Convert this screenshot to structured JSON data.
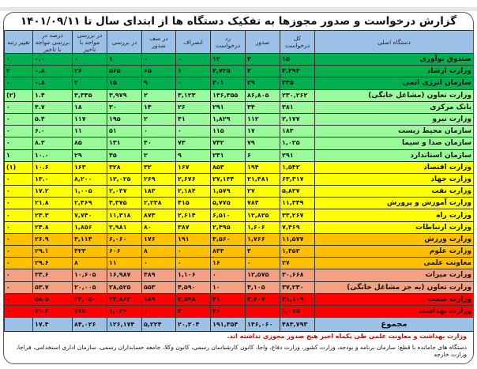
{
  "title": "گزارش درخواست و صدور مجوزها به تفکیک دستگاه ها از ابتدای سال تا ۱۴۰۱/۰۹/۱۱",
  "columns": [
    "دستگاه اصلی",
    "کل درخواست",
    "صدور",
    "رد درخواست",
    "انصراف",
    "در صف صدور",
    "در بررسی",
    "در بررسی مواجه با تاخیر",
    "درصد در بررسی مواجه با تاخیر",
    "تغییر رتبه"
  ],
  "colors": {
    "dark_green": "#00B050",
    "light_green": "#99FB99",
    "yellow": "#FFFF00",
    "orange": "#FFC000",
    "salmon": "#F2A283",
    "red": "#FF0000",
    "header_blue": "#9BC2E6",
    "note_red": "#E00000"
  },
  "rows": [
    {
      "name": "صندوق نوآوری",
      "total": "۱۵",
      "issued": "۲",
      "rejected": "۱۲",
      "cancelled": "۰",
      "queue": "۰",
      "review": "۱",
      "delayed": "۰",
      "pct": "۰.۰",
      "rank": "۰"
    },
    {
      "name": "وزارت ارشاد",
      "total": "۳,۲۹۴",
      "issued": "۳",
      "rejected": "۲,۷۲۵",
      "cancelled": "۱",
      "queue": "۶۵",
      "review": "۵۶۵",
      "delayed": "۲۶",
      "pct": "۰.۸",
      "rank": "۲"
    },
    {
      "name": "سازمان انرژی اتمی",
      "total": "۲۴۵",
      "issued": "۲۹",
      "rejected": "۲۰۱",
      "cancelled": "۰",
      "queue": "۹",
      "review": "۱۵",
      "delayed": "۲",
      "pct": "۰.۸",
      "rank": "۰"
    },
    {
      "name": "وزارت تعاون (مشاغل خانگی)",
      "total": "۲۳۰,۲۶۲",
      "issued": "۸۶,۸۰۵",
      "rejected": "۱۳۶,۳۵۵",
      "cancelled": "۳,۱۲۳",
      "queue": "۲",
      "review": "۳,۹۷۹",
      "delayed": "۳,۳۳۵",
      "pct": "۱.۴",
      "rank": "(۲)"
    },
    {
      "name": "بانک مرکزی",
      "total": "۳۸۱",
      "issued": "۳۴",
      "rejected": "۲۹۱",
      "cancelled": "۲۶",
      "queue": "۱۴",
      "review": "۳۰",
      "delayed": "۱۸",
      "pct": "۴.۷",
      "rank": "۰"
    },
    {
      "name": "وزارت نیرو",
      "total": "۲,۱۷۷",
      "issued": "۱۱۲",
      "rejected": "۱,۸۲۹",
      "cancelled": "۴۱",
      "queue": "۲",
      "review": "۱۹۵",
      "delayed": "۱۱۷",
      "pct": "۵.۴",
      "rank": "۰"
    },
    {
      "name": "سازمان محیط زیست",
      "total": "۱۸۳",
      "issued": "۱۷",
      "rejected": "۱۱۵",
      "cancelled": "۰",
      "queue": "۰",
      "review": "۵۱",
      "delayed": "۱۱",
      "pct": "۶.۰",
      "rank": "۰"
    },
    {
      "name": "سازمان صدا و سیما",
      "total": "۱,۰۲۵",
      "issued": "۷۹",
      "rejected": "۷۴۲",
      "cancelled": "۷۳",
      "queue": "۴۰",
      "review": "۱۳۱",
      "delayed": "۸۵",
      "pct": "۸.۳",
      "rank": "۰"
    },
    {
      "name": "سازمان استاندارد",
      "total": "۲۹۱",
      "issued": "۶",
      "rejected": "۲۳۱",
      "cancelled": "۹",
      "queue": "۲",
      "review": "۴۵",
      "delayed": "۲۹",
      "pct": "۱۰.۰",
      "rank": "۱"
    },
    {
      "name": "وزارت اقتصاد",
      "total": "۱,۵۴۲",
      "issued": "۱۹۴",
      "rejected": "۸۵۳",
      "cancelled": "۱۶۷",
      "queue": "۳۲",
      "review": "۳۲۸",
      "delayed": "۱۶۳",
      "pct": "۱۰.۶",
      "rank": "(۱)"
    },
    {
      "name": "وزارت جهاد",
      "total": "۶۳,۳۱۷",
      "issued": "۲۱,۴۸۱",
      "rejected": "۲۷,۱۳۴",
      "cancelled": "۲,۶۷۶",
      "queue": "۲۶۹",
      "review": "۱۲,۰۲۵",
      "delayed": "۸,۲۰۰",
      "pct": "۱۳.۰",
      "rank": "۰"
    },
    {
      "name": "وزارت نفت",
      "total": "۵,۸۳۷",
      "issued": "۲۷",
      "rejected": "۱,۵۷۹",
      "cancelled": "۲,۱۸۴",
      "queue": "۱۸۳",
      "review": "۲,۰۴۷",
      "delayed": "۱,۰۰۵",
      "pct": "۱۷.۲",
      "rank": "۰"
    },
    {
      "name": "وزارت آموزش و پرورش",
      "total": "۱۱,۳۴۹",
      "issued": "۷۸۴",
      "rejected": "۵,۷۷۵",
      "cancelled": "۴۱۵",
      "queue": "۲,۲۳۸",
      "review": "۴,۳۷۵",
      "delayed": "۲,۴۶۹",
      "pct": "۲۱.۸",
      "rank": "۰"
    },
    {
      "name": "وزارت راه",
      "total": "۳۳,۲۶۷",
      "issued": "۱۲,۸۲۵",
      "rejected": "۶,۵۱۰",
      "cancelled": "۲,۶۱۴",
      "queue": "۸۷۳",
      "review": "۱۱,۳۱۸",
      "delayed": "۷,۷۴۰",
      "pct": "۲۳.۳",
      "rank": "۰"
    },
    {
      "name": "وزارت ارتباطات",
      "total": "۷,۴۶۹",
      "issued": "۱,۶۰۶",
      "rejected": "۲,۴۹۵",
      "cancelled": "۳۸۷",
      "queue": "۸۰",
      "review": "۲,۹۸۱",
      "delayed": "۱,۸۵۶",
      "pct": "۲۴.۸",
      "rank": "۰"
    },
    {
      "name": "وزارت ورزش",
      "total": "۱۱,۵۷۷",
      "issued": "۱,۷۶۶",
      "rejected": "۳,۵۶۰",
      "cancelled": "۱۹۱",
      "queue": "۱۷۶",
      "review": "۶,۰۶۰",
      "delayed": "۳,۱۱۴",
      "pct": "۲۶.۹",
      "rank": "۰"
    },
    {
      "name": "وزارت علوم",
      "total": "۱,۴۵۳",
      "issued": "۳",
      "rejected": "۸۴۴",
      "cancelled": "۰",
      "queue": "۸",
      "review": "۶۰۶",
      "delayed": "۴۲۳",
      "pct": "۲۹.۱",
      "rank": "۰"
    },
    {
      "name": "معاونت علمی",
      "total": "۲۷",
      "issued": "۰",
      "rejected": "۱۶",
      "cancelled": "۰",
      "queue": "۰",
      "review": "۱۱",
      "delayed": "۸",
      "pct": "۲۹.۶",
      "rank": "۰"
    },
    {
      "name": "وزارت میراث",
      "total": "۳۰,۶۶۸",
      "issued": "۱۲,۵۷۵",
      "rejected": "۰",
      "cancelled": "۱,۱۰۶",
      "queue": "۴۸۹",
      "review": "۱۶,۹۸۷",
      "delayed": "۱۰,۶۰۵",
      "pct": "۳۴.۶",
      "rank": "۰"
    },
    {
      "name": "وزارت تعاون (به جز مشاغل خانگی)",
      "total": "۳۷,۲۳۰",
      "issued": "۴,۱۰۵",
      "rejected": "۱۰",
      "cancelled": "۴,۵۹۰",
      "queue": "۵۵۳",
      "review": "۲۸,۵۲۵",
      "delayed": "۲۰,۰۰۵",
      "pct": "۵۳.۷",
      "rank": "۰"
    },
    {
      "name": "وزارت صمت",
      "total": "۴۱,۱۰۹",
      "issued": "۳,۶۰۷",
      "rejected": "۴۱",
      "cancelled": "۲,۵۹۸",
      "queue": "۱۸۹",
      "review": "۳۴,۸۶۳",
      "delayed": "۲۴,۰۵۰",
      "pct": "۵۸.۵",
      "rank": "۰"
    },
    {
      "name": "وزارت بهداشت",
      "total": "۱,۰۷۵",
      "issued": "۰",
      "rejected": "۳۶",
      "cancelled": "۳",
      "queue": "۰",
      "review": "۱,۰۳۶",
      "delayed": "۷۶۵",
      "pct": "۷۱.۲",
      "rank": "۰"
    }
  ],
  "total": {
    "name": "مجموع",
    "total": "۴۸۳,۷۹۳",
    "issued": "۱۴۶,۰۶۰",
    "rejected": "۱۹۱,۳۵۴",
    "cancelled": "۲۰,۲۰۴",
    "queue": "۵,۲۲۴",
    "review": "۱۲۶,۱۷۴",
    "delayed": "۸۴,۰۲۶",
    "pct": "۱۷.۴",
    "rank": ""
  },
  "note": "وزارت بهداشت و معاونت علمی طی یکماه اخیر هیچ صدور مجوزی نداشته اند.",
  "footer": "دستگاه های جامانده با قطع: سازمان برنامه و بودجه،  وزارت کشور، وزارت دفاع، واجا، کانون کارشناسان رسمی، کانون وکلا، جامعه حسابداران رسمی، سازمان اداری استخدامی، فراجا، وزارت خارجه"
}
